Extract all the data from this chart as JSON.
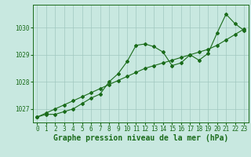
{
  "x": [
    0,
    1,
    2,
    3,
    4,
    5,
    6,
    7,
    8,
    9,
    10,
    11,
    12,
    13,
    14,
    15,
    16,
    17,
    18,
    19,
    20,
    21,
    22,
    23
  ],
  "y_line": [
    1026.7,
    1026.8,
    1026.8,
    1026.9,
    1027.0,
    1027.2,
    1027.4,
    1027.55,
    1028.0,
    1028.3,
    1028.75,
    1029.35,
    1029.4,
    1029.3,
    1029.1,
    1028.6,
    1028.7,
    1029.0,
    1028.8,
    1029.05,
    1029.8,
    1030.5,
    1030.15,
    1029.9
  ],
  "y_trend": [
    1026.7,
    1026.85,
    1027.0,
    1027.15,
    1027.3,
    1027.45,
    1027.6,
    1027.75,
    1027.9,
    1028.05,
    1028.2,
    1028.35,
    1028.5,
    1028.6,
    1028.7,
    1028.8,
    1028.9,
    1029.0,
    1029.1,
    1029.2,
    1029.35,
    1029.55,
    1029.75,
    1029.95
  ],
  "line_color": "#1a6b1a",
  "bg_color": "#c8e8e0",
  "grid_color": "#a0c8c0",
  "xlabel": "Graphe pression niveau de la mer (hPa)",
  "ylim_min": 1026.5,
  "ylim_max": 1030.85,
  "yticks": [
    1027,
    1028,
    1029,
    1030
  ],
  "xticks": [
    0,
    1,
    2,
    3,
    4,
    5,
    6,
    7,
    8,
    9,
    10,
    11,
    12,
    13,
    14,
    15,
    16,
    17,
    18,
    19,
    20,
    21,
    22,
    23
  ],
  "marker": "D",
  "markersize": 2.0,
  "linewidth": 0.8,
  "xlabel_fontsize": 7,
  "tick_fontsize": 5.5
}
